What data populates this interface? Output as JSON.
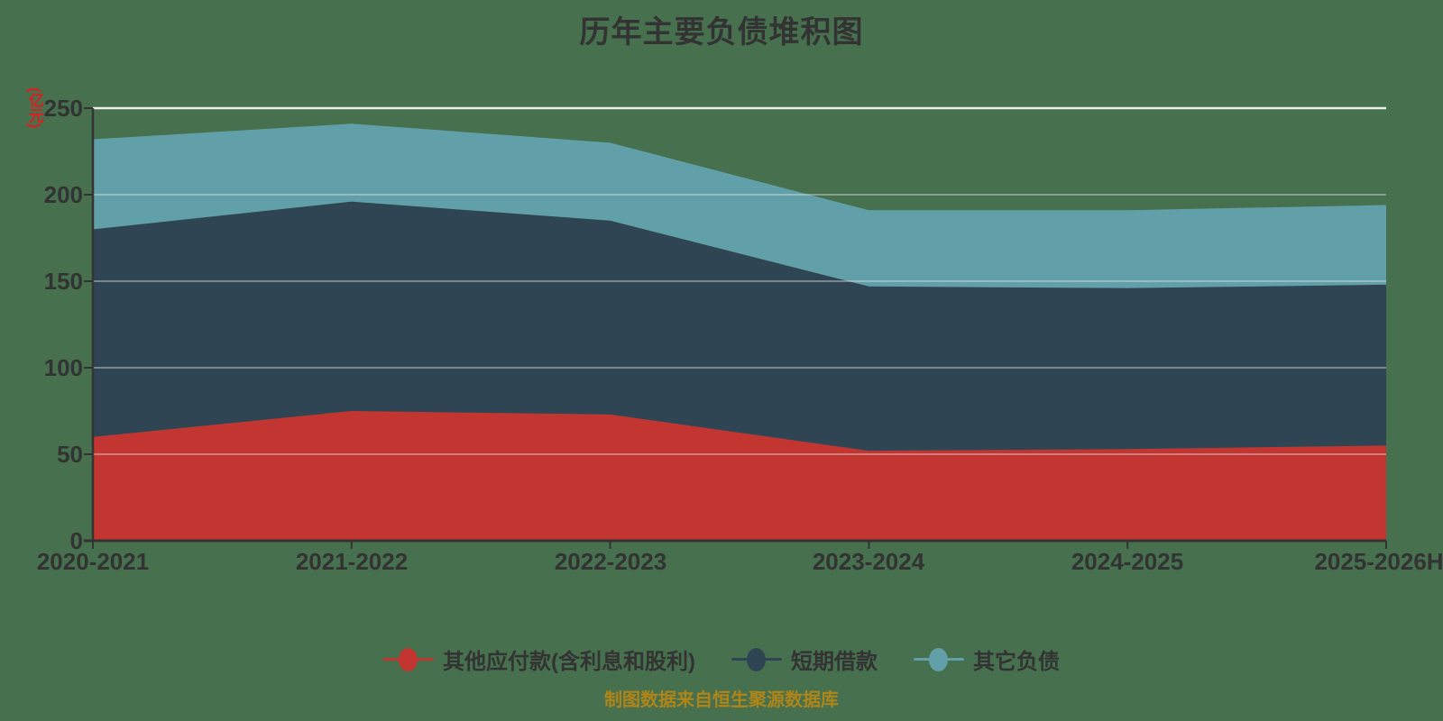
{
  "title": "历年主要负债堆积图",
  "y_axis_name": "(亿元)",
  "footer": "制图数据来自恒生聚源数据库",
  "colors": {
    "background": "#47704F",
    "title_text": "#333333",
    "axis_line": "#333333",
    "axis_name_red": "#DC1E1E",
    "tick_label": "#333333",
    "footer_text": "#B08518",
    "series_red": "#C23531",
    "series_navy": "#2F4554",
    "series_teal": "#61A0A8"
  },
  "chart_data": {
    "type": "area",
    "stacked": true,
    "title": "历年主要负债堆积图",
    "xlabel": "",
    "ylabel": "(亿元)",
    "categories": [
      "2020-2021",
      "2021-2022",
      "2022-2023",
      "2023-2024",
      "2024-2025",
      "2025-2026H"
    ],
    "series": [
      {
        "name": "其他应付款(含利息和股利)",
        "color": "#C23531",
        "values": [
          60,
          75,
          73,
          52,
          53,
          55
        ]
      },
      {
        "name": "短期借款",
        "color": "#2F4554",
        "values": [
          120,
          121,
          112,
          95,
          93,
          93
        ]
      },
      {
        "name": "其它负债",
        "color": "#61A0A8",
        "values": [
          52,
          45,
          45,
          44,
          45,
          46
        ]
      }
    ],
    "stack_totals": [
      232,
      241,
      230,
      191,
      191,
      194
    ],
    "ylim": [
      0,
      250
    ],
    "yticks": [
      0,
      50,
      100,
      150,
      200,
      250
    ],
    "ytick_labels": [
      "0",
      "50",
      "100",
      "150",
      "200",
      "250"
    ],
    "grid": true,
    "legend_position": "bottom"
  }
}
